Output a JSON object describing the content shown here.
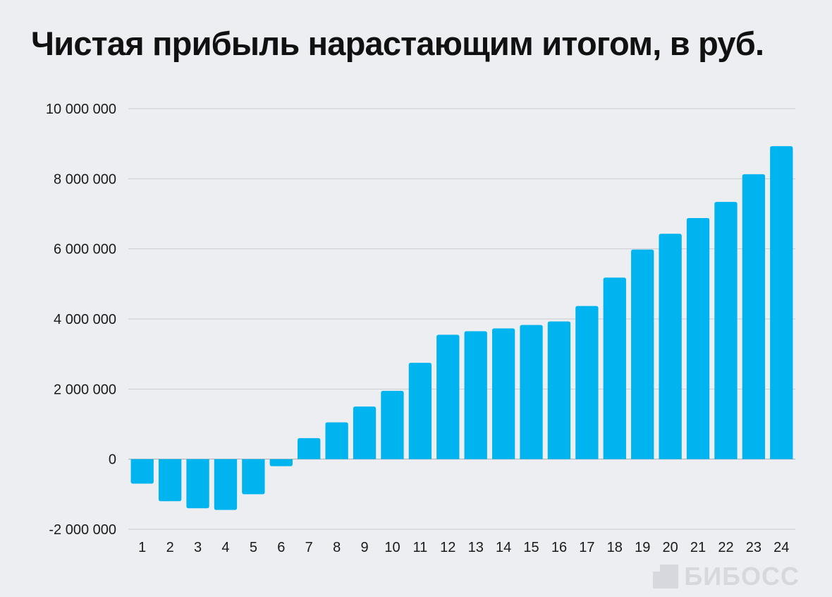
{
  "brand": {
    "name": "БИБОСС",
    "icon": "brand-square-icon"
  },
  "chart_data": {
    "type": "bar",
    "title": "Чистая прибыль нарастающим итогом, в руб.",
    "xlabel": "",
    "ylabel": "",
    "categories": [
      "1",
      "2",
      "3",
      "4",
      "5",
      "6",
      "7",
      "8",
      "9",
      "10",
      "11",
      "12",
      "13",
      "14",
      "15",
      "16",
      "17",
      "18",
      "19",
      "20",
      "21",
      "22",
      "23",
      "24"
    ],
    "values": [
      -700000,
      -1200000,
      -1400000,
      -1450000,
      -1000000,
      -200000,
      600000,
      1050000,
      1500000,
      1950000,
      2750000,
      3550000,
      3650000,
      3730000,
      3830000,
      3930000,
      4370000,
      5180000,
      5980000,
      6430000,
      6880000,
      7340000,
      8130000,
      8930000
    ],
    "ylim": [
      -2000000,
      10000000
    ],
    "yticks": [
      -2000000,
      0,
      2000000,
      4000000,
      6000000,
      8000000,
      10000000
    ],
    "ytick_labels": [
      "-2 000 000",
      "0",
      "2 000 000",
      "4 000 000",
      "6 000 000",
      "8 000 000",
      "10 000 000"
    ],
    "grid": true,
    "bar_color": "#00b4ef",
    "legend": "none"
  }
}
